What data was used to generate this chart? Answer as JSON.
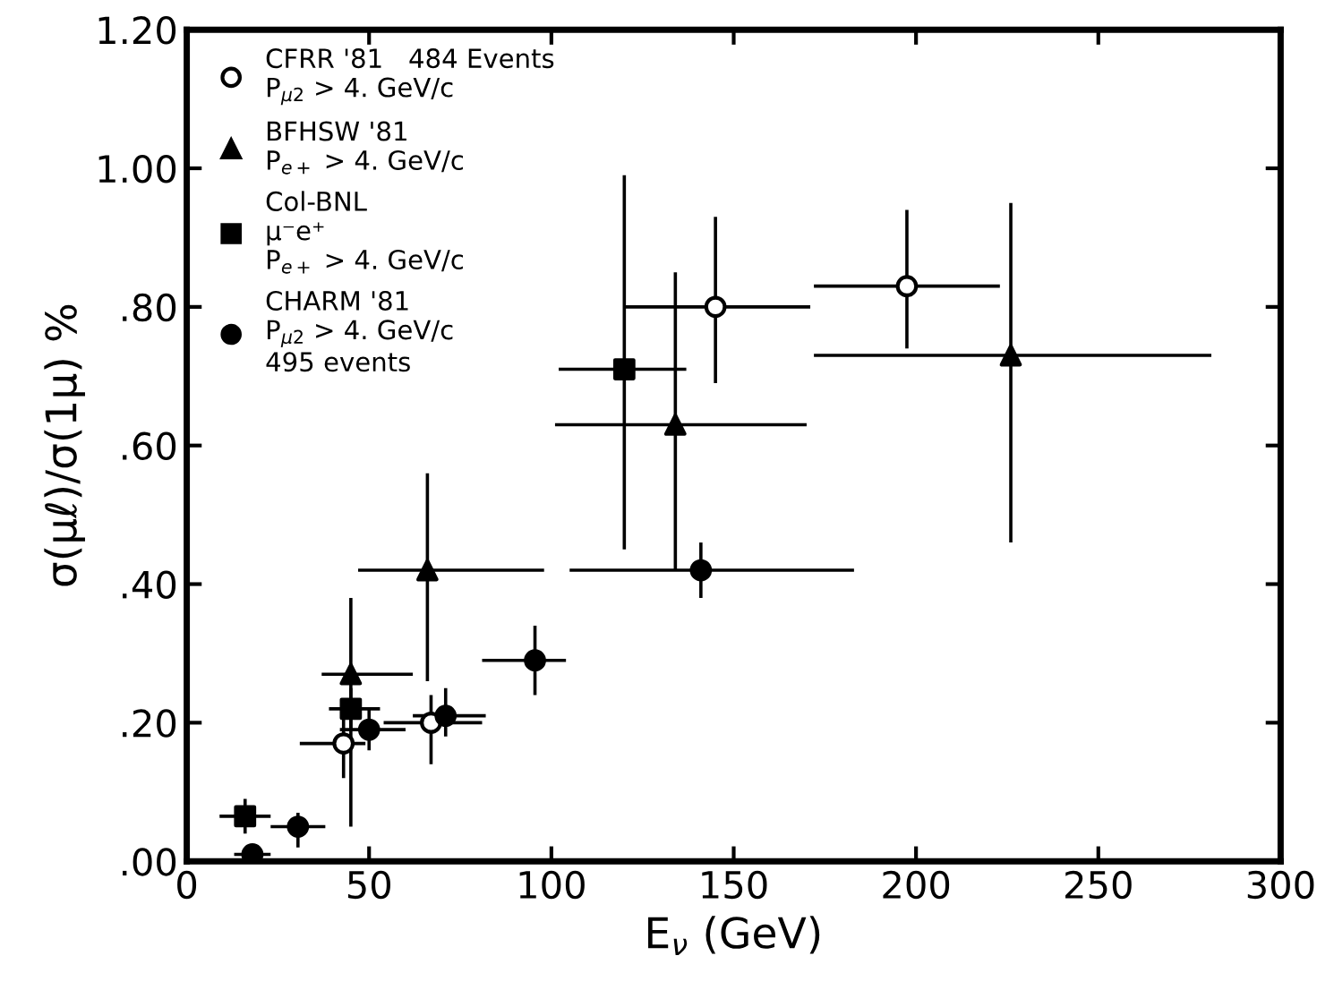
{
  "chart_data": {
    "type": "scatter",
    "xlabel": "E$_{ν}$ (GeV)",
    "ylabel": "σ(μℓ)/σ(1μ) %",
    "xlim": [
      0,
      300
    ],
    "xticks": [
      0,
      50,
      100,
      150,
      200,
      250,
      300
    ],
    "ylim": [
      0,
      1.2
    ],
    "yticks": [
      {
        "value": 0,
        "label": ".00"
      },
      {
        "value": 0.2,
        "label": ".20"
      },
      {
        "value": 0.4,
        "label": ".40"
      },
      {
        "value": 0.6,
        "label": ".60"
      },
      {
        "value": 0.8,
        "label": ".80"
      },
      {
        "value": 1.0,
        "label": "1.00"
      },
      {
        "value": 1.2,
        "label": "1.20"
      }
    ],
    "grid": false,
    "legend": "top left",
    "series": [
      {
        "name": "CFRR '81   484 Events\nP$_{μ2}$ > 4. GeV/c",
        "color": "#ffffff",
        "marker": "circle",
        "x": [
          43,
          67,
          145,
          197.5
        ],
        "values": [
          0.17,
          0.2,
          0.8,
          0.83
        ],
        "errors": [
          [
            0.12,
            0.21
          ],
          [
            0.14,
            0.24
          ],
          [
            0.69,
            0.93
          ],
          [
            0.74,
            0.94
          ]
        ],
        "xerrors": [
          [
            31,
            49
          ],
          [
            54,
            81
          ],
          [
            120,
            171
          ],
          [
            172,
            223
          ]
        ]
      },
      {
        "name": "BFHSW '81\nP$_{e+}$ > 4. GeV/c",
        "color": "#000000",
        "marker": "triangle",
        "x": [
          45,
          66,
          134,
          226
        ],
        "values": [
          0.27,
          0.42,
          0.63,
          0.73
        ],
        "errors": [
          [
            0.05,
            0.38
          ],
          [
            0.26,
            0.56
          ],
          [
            0.42,
            0.85
          ],
          [
            0.46,
            0.95
          ]
        ],
        "xerrors": [
          [
            37,
            62
          ],
          [
            47,
            98
          ],
          [
            101,
            170
          ],
          [
            172,
            281
          ]
        ]
      },
      {
        "name": "Col-BNL\nμ⁻e⁺\nP$_{e+}$ > 4. GeV/c",
        "color": "#000000",
        "marker": "square",
        "x": [
          16,
          45,
          120
        ],
        "values": [
          0.065,
          0.22,
          0.71
        ],
        "errors": [
          [
            0.04,
            0.09
          ],
          [
            0.19,
            0.25
          ],
          [
            0.45,
            0.99
          ]
        ],
        "xerrors": [
          [
            9,
            23
          ],
          [
            39,
            53
          ],
          [
            102,
            137
          ]
        ]
      },
      {
        "name": "CHARM '81\nP$_{μ2}$ > 4. GeV/c\n495 events",
        "color": "#000000",
        "marker": "circle",
        "x": [
          18,
          30.5,
          50,
          71,
          95.5,
          141
        ],
        "values": [
          0.01,
          0.05,
          0.19,
          0.21,
          0.29,
          0.42
        ],
        "errors": [
          null,
          [
            0.02,
            0.07
          ],
          [
            0.16,
            0.22
          ],
          [
            0.18,
            0.25
          ],
          [
            0.24,
            0.34
          ],
          [
            0.38,
            0.46
          ]
        ],
        "xerrors": [
          [
            13,
            23
          ],
          [
            23,
            38
          ],
          [
            42,
            60
          ],
          [
            62,
            82
          ],
          [
            81,
            104
          ],
          [
            105,
            183
          ]
        ]
      }
    ]
  }
}
